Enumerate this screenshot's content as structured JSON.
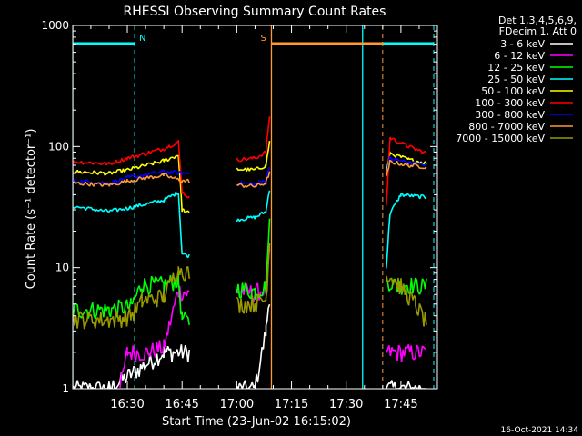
{
  "chart_data": {
    "type": "line",
    "title": "RHESSI Observing Summary Count Rates",
    "xlabel": "Start Time (23-Jun-02 16:15:02)",
    "ylabel": "Count Rate (s⁻¹ detector⁻¹)",
    "y_scale": "log",
    "ylim": [
      1,
      1000
    ],
    "xlim": [
      "16:15:02",
      "17:55:00"
    ],
    "x_ticks": [
      "16:30",
      "16:45",
      "17:00",
      "17:15",
      "17:30",
      "17:45"
    ],
    "y_ticks": [
      "1",
      "10",
      "100",
      "1000"
    ],
    "grid": false,
    "legend_header": [
      "Det 1,3,4,5,6,9,",
      "FDecim 1, Att 0"
    ],
    "legend_position": "right",
    "timestamp": "16-Oct-2021 14:34",
    "series": [
      {
        "name": "3 - 6 keV",
        "color": "#ffffff",
        "segments": [
          [
            [
              "16:15:10",
              1
            ],
            [
              "16:25",
              1
            ],
            [
              "16:40",
              2
            ],
            [
              "16:47",
              2
            ]
          ],
          [
            [
              "17:00",
              1
            ],
            [
              "17:05",
              1
            ],
            [
              "17:08",
              3
            ],
            [
              "17:09",
              6
            ]
          ],
          [
            [
              "17:41",
              1
            ],
            [
              "17:52",
              1
            ]
          ]
        ]
      },
      {
        "name": "6 - 12 keV",
        "color": "#ff00ff",
        "segments": [
          [
            [
              "16:28",
              1
            ],
            [
              "16:30",
              2
            ],
            [
              "16:35",
              2
            ],
            [
              "16:40",
              2.2
            ],
            [
              "16:44",
              6.5
            ],
            [
              "16:47",
              6
            ]
          ],
          [
            [
              "17:00",
              6.5
            ],
            [
              "17:05",
              6.2
            ],
            [
              "17:08",
              6.8
            ],
            [
              "17:09",
              14
            ]
          ],
          [
            [
              "17:41",
              2
            ],
            [
              "17:52",
              2
            ]
          ]
        ]
      },
      {
        "name": "12 - 25 keV",
        "color": "#00ff00",
        "segments": [
          [
            [
              "16:15:10",
              4.5
            ],
            [
              "16:25",
              4.5
            ],
            [
              "16:31",
              4.8
            ],
            [
              "16:34",
              7.3
            ],
            [
              "16:40",
              7.2
            ],
            [
              "16:44",
              8
            ],
            [
              "16:45",
              3.8
            ],
            [
              "16:47",
              3.5
            ]
          ],
          [
            [
              "17:00",
              6.8
            ],
            [
              "17:05",
              6.4
            ],
            [
              "17:08",
              7
            ],
            [
              "17:09",
              25
            ]
          ],
          [
            [
              "17:41",
              8
            ],
            [
              "17:44",
              7
            ],
            [
              "17:46",
              7.3
            ],
            [
              "17:52",
              7
            ]
          ]
        ]
      },
      {
        "name": "25 - 50 keV",
        "color": "#00ffff",
        "segments": [
          [
            [
              "16:15:10",
              32
            ],
            [
              "16:25",
              29
            ],
            [
              "16:30",
              31
            ],
            [
              "16:40",
              36
            ],
            [
              "16:44",
              42
            ],
            [
              "16:45",
              13
            ],
            [
              "16:47",
              12.5
            ]
          ],
          [
            [
              "17:00",
              25
            ],
            [
              "17:05",
              26
            ],
            [
              "17:08",
              29
            ],
            [
              "17:09",
              45
            ]
          ],
          [
            [
              "17:41",
              10
            ],
            [
              "17:42",
              28
            ],
            [
              "17:45",
              40
            ],
            [
              "17:52",
              38
            ]
          ]
        ]
      },
      {
        "name": "50 - 100 keV",
        "color": "#ffff00",
        "segments": [
          [
            [
              "16:15:10",
              62
            ],
            [
              "16:25",
              60
            ],
            [
              "16:30",
              64
            ],
            [
              "16:40",
              76
            ],
            [
              "16:44",
              85
            ],
            [
              "16:45",
              30
            ],
            [
              "16:47",
              28
            ]
          ],
          [
            [
              "17:00",
              65
            ],
            [
              "17:05",
              64
            ],
            [
              "17:08",
              70
            ],
            [
              "17:09",
              110
            ]
          ],
          [
            [
              "17:41",
              60
            ],
            [
              "17:42",
              88
            ],
            [
              "17:47",
              78
            ],
            [
              "17:52",
              73
            ]
          ]
        ]
      },
      {
        "name": "100 - 300 keV",
        "color": "#ff0000",
        "segments": [
          [
            [
              "16:15:10",
              75
            ],
            [
              "16:25",
              72
            ],
            [
              "16:30",
              80
            ],
            [
              "16:40",
              96
            ],
            [
              "16:44",
              110
            ],
            [
              "16:45",
              42
            ],
            [
              "16:47",
              38
            ]
          ],
          [
            [
              "17:00",
              78
            ],
            [
              "17:05",
              80
            ],
            [
              "17:08",
              90
            ],
            [
              "17:09",
              180
            ]
          ],
          [
            [
              "17:41",
              32
            ],
            [
              "17:42",
              118
            ],
            [
              "17:47",
              100
            ],
            [
              "17:52",
              88
            ]
          ]
        ]
      },
      {
        "name": "300 - 800 keV",
        "color": "#0000ff",
        "segments": [
          [
            [
              "16:15:10",
              52
            ],
            [
              "16:25",
              50
            ],
            [
              "16:30",
              55
            ],
            [
              "16:40",
              62
            ],
            [
              "16:45",
              60
            ],
            [
              "16:47",
              60
            ]
          ],
          [
            [
              "17:00",
              50
            ],
            [
              "17:05",
              49
            ],
            [
              "17:08",
              53
            ],
            [
              "17:09",
              70
            ]
          ],
          [
            [
              "17:41",
              60
            ],
            [
              "17:42",
              80
            ],
            [
              "17:47",
              74
            ],
            [
              "17:52",
              70
            ]
          ]
        ]
      },
      {
        "name": "800 - 7000 keV",
        "color": "#ff9933",
        "segments": [
          [
            [
              "16:15:10",
              50
            ],
            [
              "16:25",
              48
            ],
            [
              "16:30",
              52
            ],
            [
              "16:40",
              58
            ],
            [
              "16:45",
              52
            ],
            [
              "16:47",
              52
            ]
          ],
          [
            [
              "17:00",
              48
            ],
            [
              "17:05",
              47
            ],
            [
              "17:08",
              50
            ],
            [
              "17:09",
              62
            ]
          ],
          [
            [
              "17:41",
              55
            ],
            [
              "17:42",
              75
            ],
            [
              "17:47",
              70
            ],
            [
              "17:52",
              68
            ]
          ]
        ]
      },
      {
        "name": "7000 - 15000 keV",
        "color": "#999900",
        "segments": [
          [
            [
              "16:15:10",
              3.8
            ],
            [
              "16:25",
              3.7
            ],
            [
              "16:31",
              4
            ],
            [
              "16:34",
              5.3
            ],
            [
              "16:40",
              5.8
            ],
            [
              "16:44",
              10
            ],
            [
              "16:47",
              9
            ]
          ],
          [
            [
              "17:00",
              5
            ],
            [
              "17:05",
              5.1
            ],
            [
              "17:08",
              5.5
            ],
            [
              "17:09",
              16
            ]
          ],
          [
            [
              "17:41",
              9
            ],
            [
              "17:45",
              7
            ],
            [
              "17:49",
              5
            ],
            [
              "17:52",
              3.5
            ]
          ]
        ]
      }
    ],
    "attenuator_periods": [
      {
        "label": "",
        "start": "16:15:02",
        "end": "16:32:00",
        "color": "#00ffff"
      },
      {
        "label": "",
        "start": "17:34:30",
        "end": "17:54:00",
        "color": "#00ffff"
      },
      {
        "label": "",
        "start": "17:09:30",
        "end": "17:40:00",
        "color": "#ff9933"
      }
    ],
    "event_markers": [
      {
        "label": "N",
        "time": "16:32:00",
        "color": "#00ffff"
      },
      {
        "label": "S",
        "time": "17:09:30",
        "color": "#ff9933"
      },
      {
        "label": "",
        "time": "17:40:00",
        "color": "#ff9933"
      },
      {
        "label": "",
        "time": "17:54:00",
        "color": "#00ffff"
      }
    ]
  }
}
